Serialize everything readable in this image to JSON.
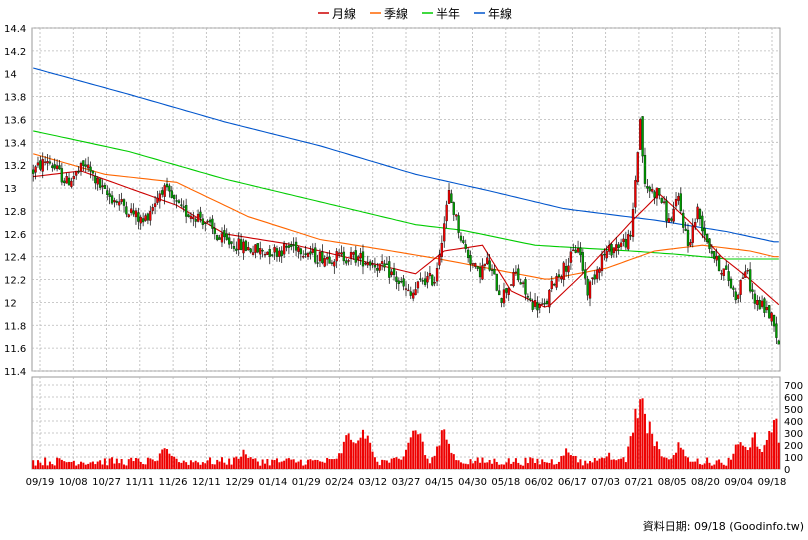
{
  "chart_data": {
    "type": "candlestick",
    "legend": [
      {
        "label": "月線",
        "color": "#cc0000"
      },
      {
        "label": "季線",
        "color": "#ff6600"
      },
      {
        "label": "半年",
        "color": "#00cc00"
      },
      {
        "label": "年線",
        "color": "#0055cc"
      }
    ],
    "x_ticks": [
      "09/19",
      "10/08",
      "10/27",
      "11/11",
      "11/26",
      "12/11",
      "12/29",
      "01/14",
      "01/29",
      "02/24",
      "03/12",
      "03/27",
      "04/15",
      "04/30",
      "05/18",
      "06/02",
      "06/17",
      "07/03",
      "07/21",
      "08/05",
      "08/20",
      "09/04",
      "09/18"
    ],
    "price_axis": {
      "ylim": [
        11.4,
        14.4
      ],
      "ticks": [
        "14.4",
        "14.2",
        "14",
        "13.8",
        "13.6",
        "13.4",
        "13.2",
        "13",
        "12.8",
        "12.6",
        "12.4",
        "12.2",
        "12",
        "11.8",
        "11.6",
        "11.4"
      ]
    },
    "volume_axis": {
      "ylim": [
        0,
        750
      ],
      "ticks": [
        "700",
        "600",
        "500",
        "400",
        "300",
        "200",
        "100",
        "0"
      ]
    },
    "price_anchors": [
      [
        0,
        13.15
      ],
      [
        6,
        13.25
      ],
      [
        14,
        13.05
      ],
      [
        22,
        13.2
      ],
      [
        30,
        12.95
      ],
      [
        38,
        12.85
      ],
      [
        46,
        12.7
      ],
      [
        54,
        13.0
      ],
      [
        62,
        12.8
      ],
      [
        70,
        12.75
      ],
      [
        78,
        12.55
      ],
      [
        86,
        12.5
      ],
      [
        94,
        12.45
      ],
      [
        102,
        12.45
      ],
      [
        110,
        12.5
      ],
      [
        118,
        12.4
      ],
      [
        126,
        12.4
      ],
      [
        134,
        12.4
      ],
      [
        142,
        12.35
      ],
      [
        150,
        12.25
      ],
      [
        158,
        12.05
      ],
      [
        163,
        12.2
      ],
      [
        168,
        12.2
      ],
      [
        174,
        12.95
      ],
      [
        180,
        12.5
      ],
      [
        186,
        12.25
      ],
      [
        190,
        12.35
      ],
      [
        196,
        12.05
      ],
      [
        202,
        12.25
      ],
      [
        208,
        12.0
      ],
      [
        214,
        11.95
      ],
      [
        218,
        12.2
      ],
      [
        224,
        12.35
      ],
      [
        228,
        12.5
      ],
      [
        232,
        12.1
      ],
      [
        238,
        12.4
      ],
      [
        244,
        12.5
      ],
      [
        250,
        12.55
      ],
      [
        254,
        13.6
      ],
      [
        256,
        13.0
      ],
      [
        262,
        12.95
      ],
      [
        266,
        12.7
      ],
      [
        270,
        12.9
      ],
      [
        274,
        12.5
      ],
      [
        278,
        12.8
      ],
      [
        282,
        12.55
      ],
      [
        286,
        12.35
      ],
      [
        290,
        12.25
      ],
      [
        294,
        12.05
      ],
      [
        298,
        12.3
      ],
      [
        302,
        12.0
      ],
      [
        306,
        11.95
      ],
      [
        310,
        11.85
      ],
      [
        312,
        11.6
      ]
    ],
    "volume_seed_profile": {
      "baseline": 55,
      "peaks": [
        [
          56,
          230
        ],
        [
          88,
          190
        ],
        [
          132,
          330
        ],
        [
          138,
          420
        ],
        [
          160,
          450
        ],
        [
          172,
          390
        ],
        [
          224,
          210
        ],
        [
          240,
          160
        ],
        [
          254,
          740
        ],
        [
          258,
          440
        ],
        [
          270,
          240
        ],
        [
          296,
          300
        ],
        [
          302,
          310
        ],
        [
          310,
          500
        ]
      ]
    },
    "moving_averages": {
      "年線": [
        [
          0,
          14.05
        ],
        [
          40,
          13.82
        ],
        [
          80,
          13.58
        ],
        [
          120,
          13.37
        ],
        [
          160,
          13.12
        ],
        [
          190,
          12.98
        ],
        [
          222,
          12.82
        ],
        [
          260,
          12.72
        ],
        [
          290,
          12.62
        ],
        [
          310,
          12.53
        ]
      ],
      "半年": [
        [
          0,
          13.5
        ],
        [
          40,
          13.32
        ],
        [
          80,
          13.08
        ],
        [
          120,
          12.88
        ],
        [
          160,
          12.68
        ],
        [
          180,
          12.63
        ],
        [
          210,
          12.5
        ],
        [
          250,
          12.45
        ],
        [
          270,
          12.42
        ],
        [
          290,
          12.38
        ],
        [
          310,
          12.38
        ]
      ],
      "季線": [
        [
          0,
          13.3
        ],
        [
          30,
          13.12
        ],
        [
          60,
          13.05
        ],
        [
          90,
          12.75
        ],
        [
          120,
          12.55
        ],
        [
          150,
          12.45
        ],
        [
          170,
          12.38
        ],
        [
          190,
          12.3
        ],
        [
          215,
          12.2
        ],
        [
          240,
          12.3
        ],
        [
          260,
          12.45
        ],
        [
          280,
          12.5
        ],
        [
          300,
          12.45
        ],
        [
          310,
          12.4
        ]
      ],
      "月線": [
        [
          0,
          13.1
        ],
        [
          20,
          13.15
        ],
        [
          40,
          13.0
        ],
        [
          60,
          12.85
        ],
        [
          80,
          12.6
        ],
        [
          110,
          12.5
        ],
        [
          140,
          12.35
        ],
        [
          160,
          12.25
        ],
        [
          172,
          12.45
        ],
        [
          188,
          12.5
        ],
        [
          200,
          12.1
        ],
        [
          215,
          11.95
        ],
        [
          230,
          12.25
        ],
        [
          250,
          12.7
        ],
        [
          262,
          12.95
        ],
        [
          275,
          12.7
        ],
        [
          288,
          12.4
        ],
        [
          300,
          12.2
        ],
        [
          312,
          11.98
        ]
      ]
    }
  },
  "source_text": "資料日期: 09/18  (Goodinfo.tw)"
}
